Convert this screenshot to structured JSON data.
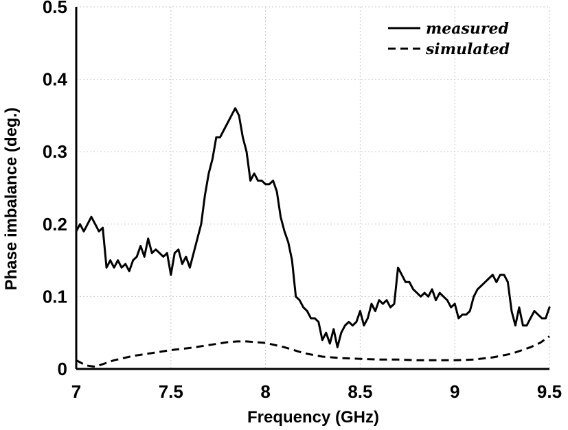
{
  "chart_data": {
    "type": "line",
    "title": "",
    "xlabel": "Frequency (GHz)",
    "ylabel": "Phase imbalance (deg.)",
    "xlim": [
      7,
      9.5
    ],
    "ylim": [
      0,
      0.5
    ],
    "xticks": [
      7,
      7.5,
      8,
      8.5,
      9,
      9.5
    ],
    "xtick_labels": [
      "7",
      "7.5",
      "8",
      "8.5",
      "9",
      "9.5"
    ],
    "yticks": [
      0,
      0.1,
      0.2,
      0.3,
      0.4,
      0.5
    ],
    "ytick_labels": [
      "0",
      "0.1",
      "0.2",
      "0.3",
      "0.4",
      "0.5"
    ],
    "grid": true,
    "legend_position": "top-right",
    "series": [
      {
        "name": "measured",
        "style": "solid",
        "color": "#000000",
        "x": [
          7.0,
          7.02,
          7.04,
          7.06,
          7.08,
          7.1,
          7.12,
          7.14,
          7.16,
          7.18,
          7.2,
          7.22,
          7.24,
          7.26,
          7.28,
          7.3,
          7.32,
          7.34,
          7.36,
          7.38,
          7.4,
          7.42,
          7.44,
          7.46,
          7.48,
          7.5,
          7.52,
          7.54,
          7.56,
          7.58,
          7.6,
          7.62,
          7.64,
          7.66,
          7.68,
          7.7,
          7.72,
          7.74,
          7.76,
          7.78,
          7.8,
          7.82,
          7.84,
          7.86,
          7.88,
          7.9,
          7.92,
          7.94,
          7.96,
          7.98,
          8.0,
          8.02,
          8.04,
          8.06,
          8.08,
          8.1,
          8.12,
          8.14,
          8.16,
          8.18,
          8.2,
          8.22,
          8.24,
          8.26,
          8.28,
          8.3,
          8.32,
          8.34,
          8.36,
          8.38,
          8.4,
          8.42,
          8.44,
          8.46,
          8.48,
          8.5,
          8.52,
          8.54,
          8.56,
          8.58,
          8.6,
          8.62,
          8.64,
          8.66,
          8.68,
          8.7,
          8.72,
          8.74,
          8.76,
          8.78,
          8.8,
          8.82,
          8.84,
          8.86,
          8.88,
          8.9,
          8.92,
          8.94,
          8.96,
          8.98,
          9.0,
          9.02,
          9.04,
          9.06,
          9.08,
          9.1,
          9.12,
          9.14,
          9.16,
          9.18,
          9.2,
          9.22,
          9.24,
          9.26,
          9.28,
          9.3,
          9.32,
          9.34,
          9.36,
          9.38,
          9.4,
          9.42,
          9.44,
          9.46,
          9.48,
          9.5
        ],
        "y": [
          0.19,
          0.2,
          0.19,
          0.2,
          0.21,
          0.2,
          0.19,
          0.195,
          0.14,
          0.15,
          0.14,
          0.15,
          0.14,
          0.145,
          0.135,
          0.15,
          0.155,
          0.17,
          0.155,
          0.18,
          0.16,
          0.165,
          0.16,
          0.155,
          0.16,
          0.13,
          0.16,
          0.165,
          0.145,
          0.155,
          0.14,
          0.16,
          0.18,
          0.2,
          0.24,
          0.27,
          0.29,
          0.32,
          0.32,
          0.33,
          0.34,
          0.35,
          0.36,
          0.35,
          0.32,
          0.3,
          0.26,
          0.27,
          0.26,
          0.26,
          0.255,
          0.255,
          0.26,
          0.245,
          0.21,
          0.19,
          0.175,
          0.15,
          0.1,
          0.095,
          0.085,
          0.08,
          0.07,
          0.07,
          0.065,
          0.04,
          0.05,
          0.035,
          0.055,
          0.03,
          0.05,
          0.06,
          0.065,
          0.06,
          0.065,
          0.08,
          0.06,
          0.07,
          0.09,
          0.08,
          0.095,
          0.09,
          0.095,
          0.085,
          0.09,
          0.14,
          0.13,
          0.12,
          0.12,
          0.11,
          0.105,
          0.1,
          0.105,
          0.1,
          0.11,
          0.095,
          0.105,
          0.1,
          0.095,
          0.085,
          0.09,
          0.07,
          0.075,
          0.075,
          0.08,
          0.1,
          0.11,
          0.115,
          0.12,
          0.125,
          0.13,
          0.12,
          0.13,
          0.13,
          0.12,
          0.08,
          0.06,
          0.085,
          0.06,
          0.06,
          0.07,
          0.08,
          0.075,
          0.07,
          0.07,
          0.085
        ],
        "note": ""
      },
      {
        "name": "simulated",
        "style": "dashed",
        "color": "#000000",
        "x": [
          7.0,
          7.05,
          7.1,
          7.2,
          7.3,
          7.4,
          7.5,
          7.6,
          7.7,
          7.8,
          7.85,
          7.9,
          7.95,
          8.0,
          8.1,
          8.2,
          8.3,
          8.4,
          8.5,
          8.6,
          8.7,
          8.8,
          8.9,
          9.0,
          9.1,
          9.2,
          9.3,
          9.4,
          9.45,
          9.5
        ],
        "y": [
          0.012,
          0.005,
          0.003,
          0.012,
          0.018,
          0.022,
          0.026,
          0.029,
          0.033,
          0.037,
          0.038,
          0.038,
          0.037,
          0.036,
          0.03,
          0.022,
          0.017,
          0.015,
          0.014,
          0.013,
          0.013,
          0.012,
          0.012,
          0.012,
          0.013,
          0.016,
          0.021,
          0.03,
          0.036,
          0.045
        ]
      }
    ]
  }
}
